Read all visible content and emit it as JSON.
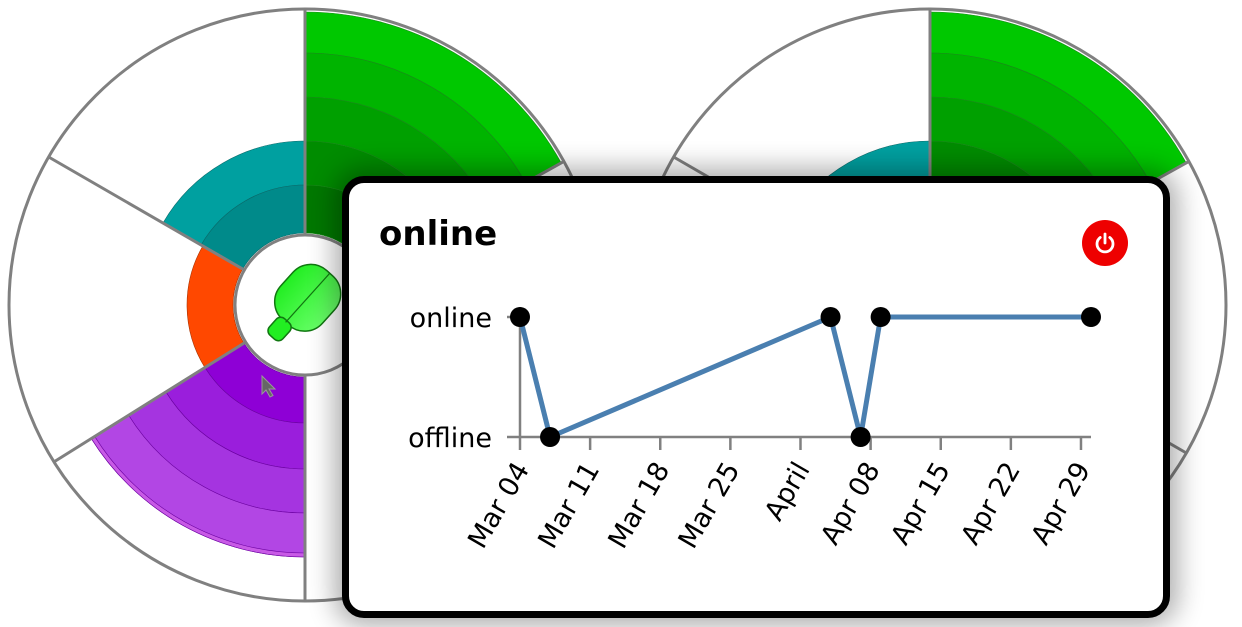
{
  "card": {
    "title": "online",
    "power_icon": "power-icon",
    "power_color": "#ee0000"
  },
  "chart_data": {
    "type": "line",
    "title": "online",
    "xlabel": "",
    "ylabel": "",
    "y_categories": [
      "offline",
      "online"
    ],
    "x_ticks": [
      "2024-03-04",
      "2024-03-11",
      "2024-03-18",
      "2024-03-25",
      "2024-04-01",
      "2024-04-08",
      "2024-04-15",
      "2024-04-22",
      "2024-04-29"
    ],
    "x_tick_labels": [
      "Mar 04",
      "Mar 11",
      "Mar 18",
      "Mar 25",
      "April",
      "Apr 08",
      "Apr 15",
      "Apr 22",
      "Apr 29"
    ],
    "xlim": [
      "2024-03-04",
      "2024-04-30"
    ],
    "points": [
      {
        "x": "2024-03-04",
        "y": "online"
      },
      {
        "x": "2024-03-07",
        "y": "offline"
      },
      {
        "x": "2024-04-04",
        "y": "online"
      },
      {
        "x": "2024-04-07",
        "y": "offline"
      },
      {
        "x": "2024-04-09",
        "y": "online"
      },
      {
        "x": "2024-04-30",
        "y": "online"
      }
    ],
    "line_color": "#4a7fb0",
    "point_color": "#000000",
    "grid": false
  },
  "background": {
    "colors": {
      "green": "#00c800",
      "teal": "#00a0a0",
      "orange": "#ff4800",
      "purple": "#8e00d6",
      "lavender": "#c85ae6",
      "outline": "#808080",
      "plug": "#22ee22"
    },
    "icons": [
      "plug-icon",
      "cursor-icon"
    ]
  }
}
